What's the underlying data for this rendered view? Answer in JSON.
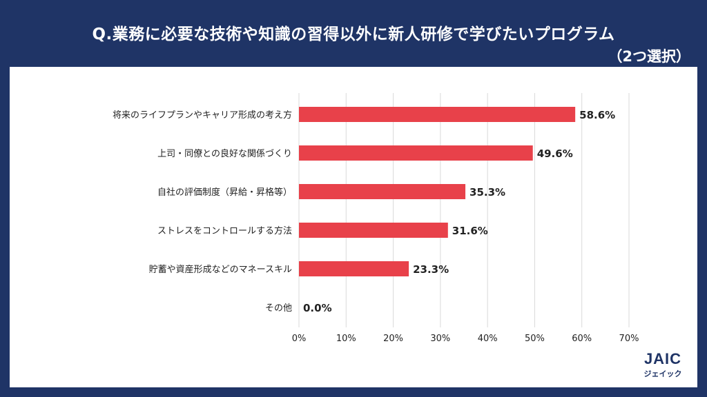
{
  "title": "Q.業務に必要な技術や知識の習得以外に新人研修で学びたいプログラム",
  "subtitle": "（2つ選択）",
  "logo": {
    "main": "JAIC",
    "sub": "ジェイック"
  },
  "colors": {
    "background": "#1f3466",
    "bar": "#e8414a",
    "grid": "#d9d9d9",
    "text": "#222222"
  },
  "chart_data": {
    "type": "bar",
    "orientation": "horizontal",
    "categories": [
      "将来のライフプランやキャリア形成の考え方",
      "上司・同僚との良好な関係づくり",
      "自社の評価制度（昇給・昇格等）",
      "ストレスをコントロールする方法",
      "貯蓄や資産形成などのマネースキル",
      "その他"
    ],
    "values": [
      58.6,
      49.6,
      35.3,
      31.6,
      23.3,
      0.0
    ],
    "value_labels": [
      "58.6%",
      "49.6%",
      "35.3%",
      "31.6%",
      "23.3%",
      "0.0%"
    ],
    "xlim": [
      0,
      70
    ],
    "ticks": [
      0,
      10,
      20,
      30,
      40,
      50,
      60,
      70
    ],
    "tick_labels": [
      "0%",
      "10%",
      "20%",
      "30%",
      "40%",
      "50%",
      "60%",
      "70%"
    ],
    "grid": true
  }
}
